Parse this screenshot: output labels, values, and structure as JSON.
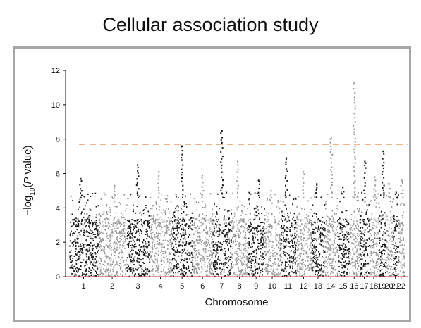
{
  "title": "Cellular association study",
  "chart_data": {
    "type": "scatter",
    "subtype": "manhattan",
    "xlabel": "Chromosome",
    "ylabel_parts": [
      "−log",
      "10",
      "(",
      "P",
      " value)"
    ],
    "ylim": [
      0,
      12
    ],
    "yticks": [
      0,
      2,
      4,
      6,
      8,
      10,
      12
    ],
    "chromosomes": [
      "1",
      "2",
      "3",
      "4",
      "5",
      "6",
      "7",
      "8",
      "9",
      "10",
      "11",
      "12",
      "13",
      "14",
      "15",
      "16",
      "17",
      "18",
      "19",
      "20",
      "21",
      "22"
    ],
    "significance_threshold": 7.7,
    "colors": {
      "odd": "#1a1a1a",
      "even": "#999999",
      "threshold": "#f0b48a",
      "baseline": "#c0392b",
      "title": "#111111"
    },
    "peaks": [
      {
        "chr": "1",
        "value": 5.7
      },
      {
        "chr": "2",
        "value": 5.3
      },
      {
        "chr": "3",
        "value": 6.5
      },
      {
        "chr": "4",
        "value": 6.1
      },
      {
        "chr": "5",
        "value": 7.6
      },
      {
        "chr": "6",
        "value": 5.9
      },
      {
        "chr": "7",
        "value": 8.5
      },
      {
        "chr": "8",
        "value": 6.7
      },
      {
        "chr": "9",
        "value": 5.6
      },
      {
        "chr": "10",
        "value": 5.0
      },
      {
        "chr": "11",
        "value": 6.9
      },
      {
        "chr": "12",
        "value": 6.1
      },
      {
        "chr": "13",
        "value": 5.4
      },
      {
        "chr": "14",
        "value": 8.1
      },
      {
        "chr": "15",
        "value": 5.2
      },
      {
        "chr": "16",
        "value": 11.3
      },
      {
        "chr": "17",
        "value": 6.7
      },
      {
        "chr": "18",
        "value": 5.8
      },
      {
        "chr": "19",
        "value": 7.3
      },
      {
        "chr": "20",
        "value": 5.4
      },
      {
        "chr": "21",
        "value": 4.9
      },
      {
        "chr": "22",
        "value": 5.6
      }
    ]
  }
}
